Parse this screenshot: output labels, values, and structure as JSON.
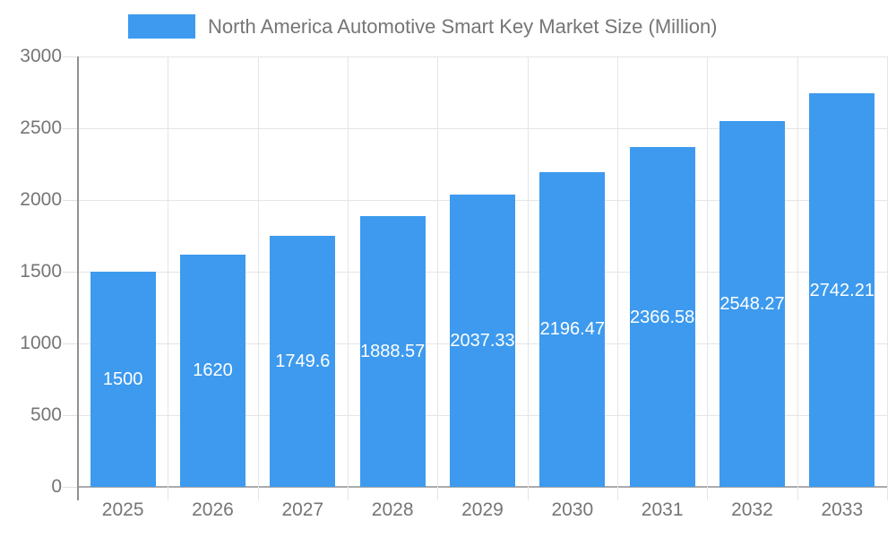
{
  "legend": {
    "label": "North America Automotive Smart Key Market Size (Million)"
  },
  "chart_data": {
    "type": "bar",
    "title": "North America Automotive Smart Key Market Size (Million)",
    "categories": [
      "2025",
      "2026",
      "2027",
      "2028",
      "2029",
      "2030",
      "2031",
      "2032",
      "2033"
    ],
    "values": [
      1500,
      1620,
      1749.6,
      1888.57,
      2037.33,
      2196.47,
      2366.58,
      2548.27,
      2742.21
    ],
    "bar_labels": [
      "1500",
      "1620",
      "1749.6",
      "1888.57",
      "2037.33",
      "2196.47",
      "2366.58",
      "2548.27",
      "2742.21"
    ],
    "y_ticks": [
      0,
      500,
      1000,
      1500,
      2000,
      2500,
      3000
    ],
    "ylim": [
      0,
      3000
    ],
    "xlabel": "",
    "ylabel": "",
    "legend_position": "top",
    "grid": true,
    "colors": {
      "bar": "#3D9AEE",
      "bar_label_text": "#FFFFFF",
      "axis_text": "#757575",
      "gridline": "#E5E5E5",
      "axis_line": "#919191",
      "zero_line": "#ABABAB"
    }
  }
}
